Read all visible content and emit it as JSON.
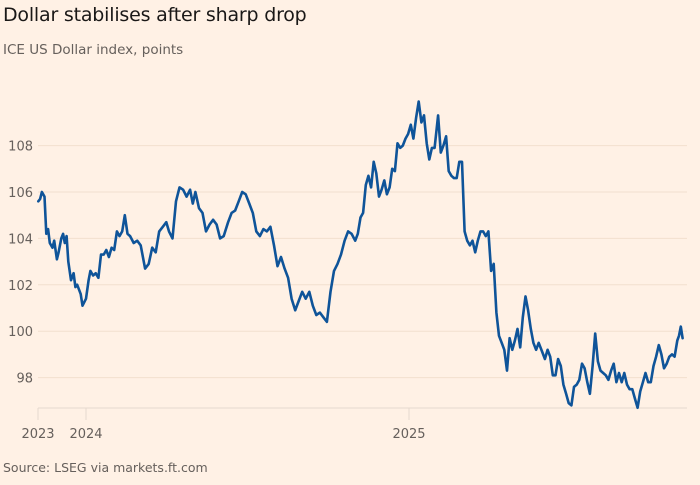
{
  "title": "Dollar stabilises after sharp drop",
  "subtitle": "ICE US Dollar index, points",
  "source": "Source: LSEG via markets.ft.com",
  "colors": {
    "background": "#fff1e5",
    "line": "#0f5499",
    "grid": "#f2dfce",
    "axis": "#e6d9ce",
    "text": "#66605c",
    "title": "#1a1817"
  },
  "chart_data": {
    "type": "line",
    "title": "Dollar stabilises after sharp drop",
    "subtitle": "ICE US Dollar index, points",
    "xlabel": "",
    "ylabel": "ICE US Dollar index, points",
    "ylim": [
      96.7,
      110.2
    ],
    "yticks": [
      98,
      100,
      102,
      104,
      106,
      108
    ],
    "xticks": [
      {
        "label": "2023",
        "date": "2023-11-08"
      },
      {
        "label": "2024",
        "date": "2024-01-01"
      },
      {
        "label": "2025",
        "date": "2025-01-01"
      }
    ],
    "xlim": [
      "2023-11-08",
      "2025-11-08"
    ],
    "grid": true,
    "legend": "none",
    "series": [
      {
        "name": "ICE US Dollar index",
        "points": [
          [
            "2023-11-08",
            105.6
          ],
          [
            "2023-11-10",
            105.7
          ],
          [
            "2023-11-12",
            106.0
          ],
          [
            "2023-11-15",
            105.8
          ],
          [
            "2023-11-17",
            104.2
          ],
          [
            "2023-11-19",
            104.4
          ],
          [
            "2023-11-21",
            103.8
          ],
          [
            "2023-11-24",
            103.6
          ],
          [
            "2023-11-26",
            103.9
          ],
          [
            "2023-11-29",
            103.1
          ],
          [
            "2023-12-01",
            103.4
          ],
          [
            "2023-12-04",
            104.0
          ],
          [
            "2023-12-06",
            104.2
          ],
          [
            "2023-12-08",
            103.8
          ],
          [
            "2023-12-10",
            104.1
          ],
          [
            "2023-12-12",
            103.0
          ],
          [
            "2023-12-15",
            102.2
          ],
          [
            "2023-12-18",
            102.5
          ],
          [
            "2023-12-20",
            101.9
          ],
          [
            "2023-12-22",
            102.0
          ],
          [
            "2023-12-26",
            101.6
          ],
          [
            "2023-12-28",
            101.1
          ],
          [
            "2024-01-01",
            101.4
          ],
          [
            "2024-01-04",
            102.2
          ],
          [
            "2024-01-06",
            102.6
          ],
          [
            "2024-01-09",
            102.4
          ],
          [
            "2024-01-12",
            102.5
          ],
          [
            "2024-01-15",
            102.3
          ],
          [
            "2024-01-18",
            103.3
          ],
          [
            "2024-01-21",
            103.3
          ],
          [
            "2024-01-24",
            103.5
          ],
          [
            "2024-01-27",
            103.2
          ],
          [
            "2024-01-30",
            103.6
          ],
          [
            "2024-02-02",
            103.5
          ],
          [
            "2024-02-05",
            104.3
          ],
          [
            "2024-02-08",
            104.1
          ],
          [
            "2024-02-11",
            104.3
          ],
          [
            "2024-02-14",
            105.0
          ],
          [
            "2024-02-17",
            104.2
          ],
          [
            "2024-02-20",
            104.1
          ],
          [
            "2024-02-24",
            103.8
          ],
          [
            "2024-02-28",
            103.9
          ],
          [
            "2024-03-03",
            103.7
          ],
          [
            "2024-03-08",
            102.7
          ],
          [
            "2024-03-12",
            102.9
          ],
          [
            "2024-03-16",
            103.6
          ],
          [
            "2024-03-20",
            103.4
          ],
          [
            "2024-03-24",
            104.3
          ],
          [
            "2024-03-28",
            104.5
          ],
          [
            "2024-04-01",
            104.7
          ],
          [
            "2024-04-04",
            104.3
          ],
          [
            "2024-04-08",
            104.0
          ],
          [
            "2024-04-12",
            105.6
          ],
          [
            "2024-04-16",
            106.2
          ],
          [
            "2024-04-20",
            106.1
          ],
          [
            "2024-04-24",
            105.8
          ],
          [
            "2024-04-28",
            106.1
          ],
          [
            "2024-05-01",
            105.5
          ],
          [
            "2024-05-04",
            106.0
          ],
          [
            "2024-05-08",
            105.3
          ],
          [
            "2024-05-12",
            105.1
          ],
          [
            "2024-05-16",
            104.3
          ],
          [
            "2024-05-20",
            104.6
          ],
          [
            "2024-05-24",
            104.8
          ],
          [
            "2024-05-28",
            104.6
          ],
          [
            "2024-06-01",
            104.0
          ],
          [
            "2024-06-05",
            104.1
          ],
          [
            "2024-06-10",
            104.7
          ],
          [
            "2024-06-14",
            105.1
          ],
          [
            "2024-06-18",
            105.2
          ],
          [
            "2024-06-22",
            105.6
          ],
          [
            "2024-06-26",
            106.0
          ],
          [
            "2024-06-30",
            105.9
          ],
          [
            "2024-07-04",
            105.5
          ],
          [
            "2024-07-08",
            105.1
          ],
          [
            "2024-07-12",
            104.3
          ],
          [
            "2024-07-16",
            104.1
          ],
          [
            "2024-07-20",
            104.4
          ],
          [
            "2024-07-24",
            104.3
          ],
          [
            "2024-07-28",
            104.5
          ],
          [
            "2024-08-01",
            103.7
          ],
          [
            "2024-08-05",
            102.8
          ],
          [
            "2024-08-09",
            103.2
          ],
          [
            "2024-08-13",
            102.7
          ],
          [
            "2024-08-17",
            102.3
          ],
          [
            "2024-08-21",
            101.4
          ],
          [
            "2024-08-25",
            100.9
          ],
          [
            "2024-08-29",
            101.3
          ],
          [
            "2024-09-02",
            101.7
          ],
          [
            "2024-09-06",
            101.4
          ],
          [
            "2024-09-10",
            101.7
          ],
          [
            "2024-09-14",
            101.1
          ],
          [
            "2024-09-18",
            100.7
          ],
          [
            "2024-09-22",
            100.8
          ],
          [
            "2024-09-26",
            100.6
          ],
          [
            "2024-09-30",
            100.4
          ],
          [
            "2024-10-04",
            101.7
          ],
          [
            "2024-10-08",
            102.6
          ],
          [
            "2024-10-12",
            102.9
          ],
          [
            "2024-10-16",
            103.3
          ],
          [
            "2024-10-20",
            103.9
          ],
          [
            "2024-10-24",
            104.3
          ],
          [
            "2024-10-28",
            104.2
          ],
          [
            "2024-11-01",
            103.9
          ],
          [
            "2024-11-04",
            104.2
          ],
          [
            "2024-11-07",
            104.9
          ],
          [
            "2024-11-10",
            105.1
          ],
          [
            "2024-11-13",
            106.3
          ],
          [
            "2024-11-16",
            106.7
          ],
          [
            "2024-11-19",
            106.2
          ],
          [
            "2024-11-22",
            107.3
          ],
          [
            "2024-11-25",
            106.8
          ],
          [
            "2024-11-28",
            105.8
          ],
          [
            "2024-12-01",
            106.1
          ],
          [
            "2024-12-04",
            106.5
          ],
          [
            "2024-12-07",
            105.9
          ],
          [
            "2024-12-10",
            106.2
          ],
          [
            "2024-12-13",
            107.0
          ],
          [
            "2024-12-16",
            106.9
          ],
          [
            "2024-12-19",
            108.1
          ],
          [
            "2024-12-22",
            107.9
          ],
          [
            "2024-12-25",
            108.0
          ],
          [
            "2024-12-28",
            108.3
          ],
          [
            "2024-12-31",
            108.5
          ],
          [
            "2025-01-03",
            108.9
          ],
          [
            "2025-01-06",
            108.3
          ],
          [
            "2025-01-09",
            109.2
          ],
          [
            "2025-01-12",
            109.9
          ],
          [
            "2025-01-15",
            109.0
          ],
          [
            "2025-01-18",
            109.3
          ],
          [
            "2025-01-21",
            108.1
          ],
          [
            "2025-01-24",
            107.4
          ],
          [
            "2025-01-27",
            107.9
          ],
          [
            "2025-01-30",
            107.9
          ],
          [
            "2025-02-03",
            109.3
          ],
          [
            "2025-02-06",
            107.7
          ],
          [
            "2025-02-09",
            108.0
          ],
          [
            "2025-02-12",
            108.4
          ],
          [
            "2025-02-15",
            106.9
          ],
          [
            "2025-02-18",
            106.7
          ],
          [
            "2025-02-21",
            106.6
          ],
          [
            "2025-02-24",
            106.6
          ],
          [
            "2025-02-27",
            107.3
          ],
          [
            "2025-03-02",
            107.3
          ],
          [
            "2025-03-05",
            104.3
          ],
          [
            "2025-03-08",
            103.9
          ],
          [
            "2025-03-11",
            103.7
          ],
          [
            "2025-03-14",
            103.9
          ],
          [
            "2025-03-17",
            103.4
          ],
          [
            "2025-03-20",
            103.9
          ],
          [
            "2025-03-23",
            104.3
          ],
          [
            "2025-03-26",
            104.3
          ],
          [
            "2025-03-29",
            104.1
          ],
          [
            "2025-04-01",
            104.3
          ],
          [
            "2025-04-04",
            102.6
          ],
          [
            "2025-04-07",
            102.9
          ],
          [
            "2025-04-10",
            100.8
          ],
          [
            "2025-04-13",
            99.8
          ],
          [
            "2025-04-16",
            99.5
          ],
          [
            "2025-04-19",
            99.2
          ],
          [
            "2025-04-22",
            98.3
          ],
          [
            "2025-04-25",
            99.7
          ],
          [
            "2025-04-28",
            99.2
          ],
          [
            "2025-05-01",
            99.6
          ],
          [
            "2025-05-04",
            100.1
          ],
          [
            "2025-05-07",
            99.3
          ],
          [
            "2025-05-10",
            100.6
          ],
          [
            "2025-05-13",
            101.5
          ],
          [
            "2025-05-16",
            100.9
          ],
          [
            "2025-05-19",
            100.1
          ],
          [
            "2025-05-22",
            99.5
          ],
          [
            "2025-05-25",
            99.2
          ],
          [
            "2025-05-28",
            99.5
          ],
          [
            "2025-06-01",
            99.1
          ],
          [
            "2025-06-04",
            98.8
          ],
          [
            "2025-06-07",
            99.2
          ],
          [
            "2025-06-10",
            98.9
          ],
          [
            "2025-06-13",
            98.1
          ],
          [
            "2025-06-16",
            98.1
          ],
          [
            "2025-06-19",
            98.8
          ],
          [
            "2025-06-22",
            98.5
          ],
          [
            "2025-06-25",
            97.7
          ],
          [
            "2025-06-28",
            97.3
          ],
          [
            "2025-07-01",
            96.9
          ],
          [
            "2025-07-04",
            96.8
          ],
          [
            "2025-07-07",
            97.6
          ],
          [
            "2025-07-10",
            97.7
          ],
          [
            "2025-07-13",
            97.9
          ],
          [
            "2025-07-16",
            98.6
          ],
          [
            "2025-07-19",
            98.4
          ],
          [
            "2025-07-22",
            97.8
          ],
          [
            "2025-07-25",
            97.3
          ],
          [
            "2025-07-28",
            98.5
          ],
          [
            "2025-07-31",
            99.9
          ],
          [
            "2025-08-03",
            98.7
          ],
          [
            "2025-08-06",
            98.3
          ],
          [
            "2025-08-09",
            98.2
          ],
          [
            "2025-08-12",
            98.1
          ],
          [
            "2025-08-15",
            97.9
          ],
          [
            "2025-08-18",
            98.3
          ],
          [
            "2025-08-21",
            98.6
          ],
          [
            "2025-08-24",
            97.8
          ],
          [
            "2025-08-27",
            98.2
          ],
          [
            "2025-08-30",
            97.8
          ],
          [
            "2025-09-02",
            98.2
          ],
          [
            "2025-09-05",
            97.7
          ],
          [
            "2025-09-08",
            97.5
          ],
          [
            "2025-09-11",
            97.5
          ],
          [
            "2025-09-14",
            97.1
          ],
          [
            "2025-09-17",
            96.7
          ],
          [
            "2025-09-20",
            97.4
          ],
          [
            "2025-09-23",
            97.8
          ],
          [
            "2025-09-26",
            98.2
          ],
          [
            "2025-09-29",
            97.8
          ],
          [
            "2025-10-02",
            97.8
          ],
          [
            "2025-10-05",
            98.5
          ],
          [
            "2025-10-08",
            98.9
          ],
          [
            "2025-10-11",
            99.4
          ],
          [
            "2025-10-14",
            99.0
          ],
          [
            "2025-10-17",
            98.4
          ],
          [
            "2025-10-20",
            98.6
          ],
          [
            "2025-10-23",
            98.9
          ],
          [
            "2025-10-26",
            99.0
          ],
          [
            "2025-10-29",
            98.9
          ],
          [
            "2025-11-01",
            99.6
          ],
          [
            "2025-11-03",
            99.8
          ],
          [
            "2025-11-05",
            100.2
          ],
          [
            "2025-11-07",
            99.7
          ]
        ]
      }
    ]
  }
}
